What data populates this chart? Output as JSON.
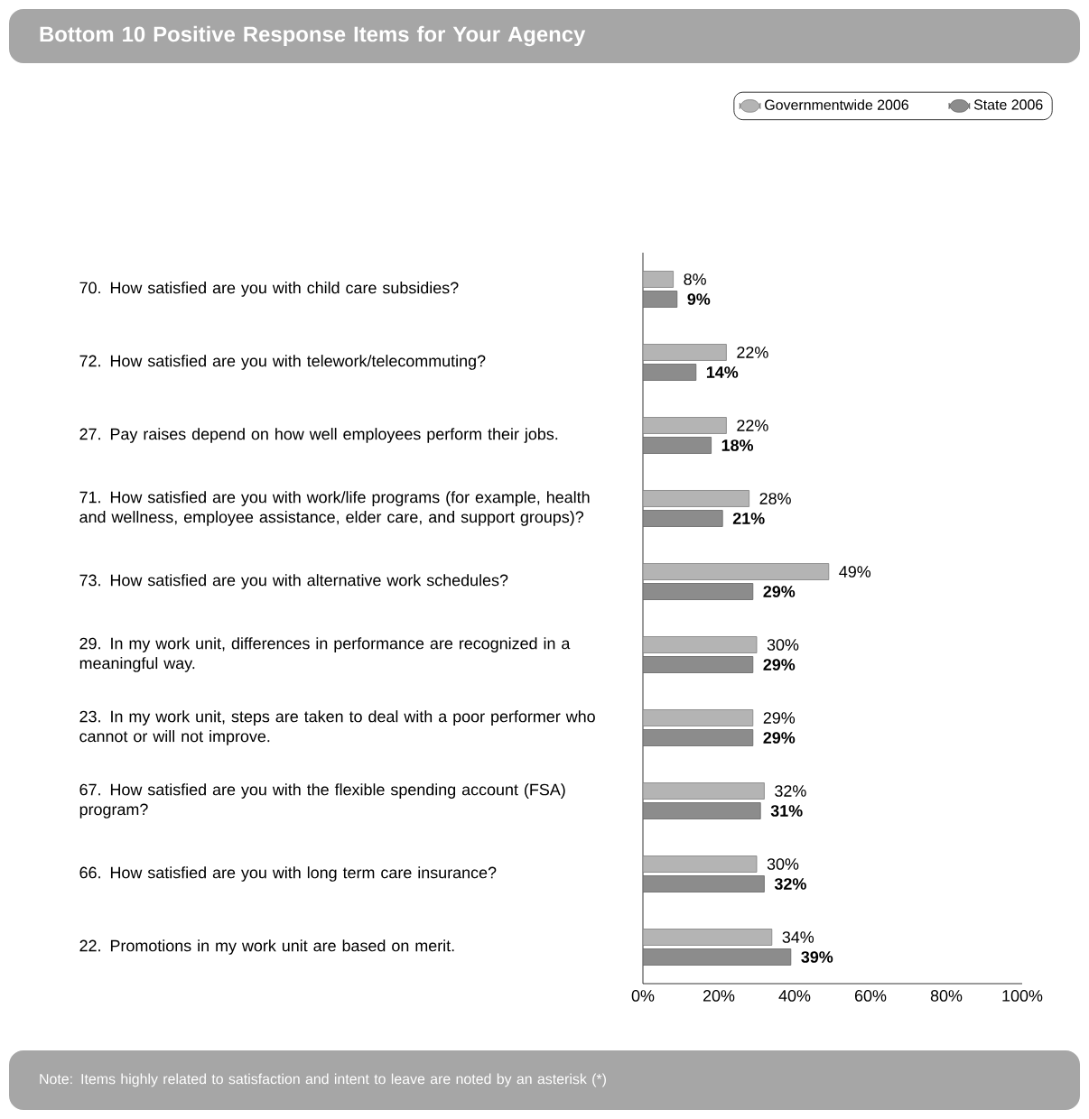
{
  "chart_data": {
    "type": "bar",
    "orientation": "horizontal",
    "title": "Bottom 10 Positive Response Items for Your Agency",
    "categories": [
      "70. How satisfied are you with child care subsidies?",
      "72. How satisfied are you with telework/telecommuting?",
      "27. Pay raises depend on how well employees perform their jobs.",
      "71. How satisfied are you with work/life programs (for example, health and wellness, employee assistance, elder care, and support groups)?",
      "73. How satisfied are you with alternative work schedules?",
      "29. In my work unit, differences in performance are recognized in a meaningful way.",
      "23. In my work unit, steps are taken to deal with a poor performer who cannot or will not improve.",
      "67. How satisfied are you with the flexible spending account (FSA) program?",
      "66. How satisfied are you with long term care insurance?",
      "22. Promotions in my work unit are based on merit."
    ],
    "series": [
      {
        "name": "Governmentwide 2006",
        "color": "#b4b4b4",
        "values": [
          8,
          22,
          22,
          28,
          49,
          30,
          29,
          32,
          30,
          34
        ],
        "value_labels": [
          "8%",
          "22%",
          "22%",
          "28%",
          "49%",
          "30%",
          "29%",
          "32%",
          "30%",
          "34%"
        ]
      },
      {
        "name": "State 2006",
        "color": "#8c8c8c",
        "values": [
          9,
          14,
          18,
          21,
          29,
          29,
          29,
          31,
          32,
          39
        ],
        "value_labels": [
          "9%",
          "14%",
          "18%",
          "21%",
          "29%",
          "29%",
          "29%",
          "31%",
          "32%",
          "39%"
        ]
      }
    ],
    "xlim": [
      0,
      100
    ],
    "xticks": [
      {
        "value": 0,
        "label": "0%"
      },
      {
        "value": 20,
        "label": "20%"
      },
      {
        "value": 40,
        "label": "40%"
      },
      {
        "value": 60,
        "label": "60%"
      },
      {
        "value": 80,
        "label": "80%"
      },
      {
        "value": 100,
        "label": "100%"
      }
    ],
    "grid": false,
    "legend": "top right",
    "annotations": [
      "Note: Items highly related to satisfaction and intent to leave are noted by an asterisk (*)"
    ]
  }
}
